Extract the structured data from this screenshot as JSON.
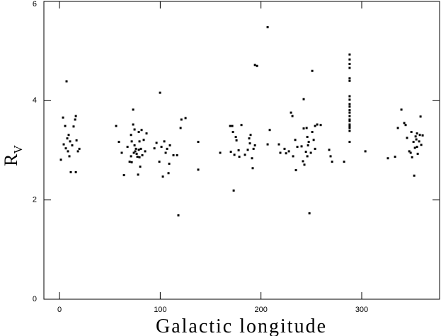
{
  "chart_data": {
    "type": "scatter",
    "x_label": "Galactic longitude",
    "y_label": "R",
    "y_label_subscript": "V",
    "xlim": [
      -15.5,
      377.3
    ],
    "ylim": [
      0,
      6
    ],
    "xticks": [
      0,
      100,
      200,
      300
    ],
    "yticks": [
      0,
      2,
      4,
      6
    ],
    "color": "#000000",
    "x": [
      1.4,
      3.5,
      4.2,
      5.6,
      7,
      6.3,
      7.7,
      9.1,
      10.5,
      11.2,
      8.4,
      12.6,
      14,
      15.5,
      16.2,
      16.9,
      18.3,
      19.7,
      9.8,
      16.2,
      56.2,
      59,
      61.8,
      64,
      67.5,
      69.6,
      71,
      71.7,
      73.1,
      73.1,
      73.8,
      74.5,
      74.5,
      75.2,
      75.9,
      76.6,
      77.3,
      78,
      78.7,
      78.7,
      79.4,
      79.4,
      80.1,
      80.8,
      81.5,
      82.2,
      71,
      71.7,
      83.6,
      86.4,
      85,
      94.2,
      96.3,
      99.8,
      99.1,
      101.2,
      102.6,
      104,
      105.4,
      106.8,
      108.2,
      109.6,
      108.9,
      113.1,
      116.7,
      118,
      120.2,
      121,
      125.1,
      137.7,
      137.7,
      159.5,
      169.4,
      170.1,
      171.5,
      172.2,
      172.9,
      173.6,
      175,
      175.7,
      177.8,
      178.5,
      180.6,
      184.1,
      186.9,
      188.3,
      189,
      189.7,
      191.1,
      191.8,
      192.6,
      194,
      196.1,
      194,
      206.6,
      206.6,
      208.7,
      217.8,
      219.2,
      223.4,
      224.9,
      227.7,
      229.8,
      231.2,
      231.9,
      234,
      234.7,
      236.1,
      240.3,
      242.4,
      241.7,
      242.4,
      243.1,
      244.6,
      245.3,
      246,
      246,
      246.7,
      247.4,
      248.1,
      249.5,
      250.9,
      250.9,
      252.3,
      253.7,
      253.7,
      255.8,
      259.3,
      267.7,
      269.1,
      270.6,
      282.5,
      288,
      288,
      288,
      288,
      288,
      288,
      288,
      288,
      288,
      288,
      288,
      288,
      288,
      288,
      288,
      288,
      288,
      288,
      288,
      288,
      303.6,
      326,
      333.1,
      335.9,
      339.4,
      342.2,
      343.6,
      345,
      347.2,
      348.6,
      349.3,
      350,
      351.4,
      352.1,
      352.8,
      353.5,
      354.2,
      354.9,
      355.6,
      357,
      357.7,
      358.4,
      359.1,
      360.5,
      354.9
    ],
    "values": [
      2.81,
      3.66,
      3.12,
      3.49,
      4.39,
      3.04,
      3.24,
      3.31,
      3.18,
      2.56,
      2.98,
      3.1,
      3.48,
      3.62,
      2.56,
      3.2,
      2.98,
      3.03,
      2.88,
      3.69,
      3.49,
      3.17,
      2.95,
      2.5,
      3.07,
      2.77,
      3.31,
      3.18,
      3.82,
      3.52,
      2.95,
      3.1,
      3.42,
      2.98,
      3.03,
      2.93,
      2.87,
      2.51,
      3.37,
      3.01,
      3.18,
      2.86,
      2.67,
      3.03,
      3.41,
      2.9,
      2.88,
      2.76,
      3.21,
      3.34,
      2.98,
      3.04,
      3.15,
      4.16,
      2.77,
      3.07,
      2.47,
      3.18,
      2.95,
      3.03,
      2.54,
      3.1,
      2.73,
      2.9,
      2.9,
      1.69,
      3.45,
      3.62,
      3.65,
      3.17,
      2.61,
      2.95,
      3.49,
      2.97,
      3.49,
      3.37,
      2.19,
      2.91,
      3.27,
      3.2,
      3,
      2.87,
      3.51,
      2.91,
      3.01,
      3.24,
      3.14,
      3.31,
      2.84,
      2.64,
      3.03,
      4.72,
      4.7,
      3.1,
      5.48,
      3.12,
      3.41,
      3.12,
      2.95,
      3.03,
      2.94,
      2.98,
      3.76,
      3.69,
      2.88,
      3.21,
      2.6,
      3.07,
      3.08,
      4.03,
      2.78,
      3.44,
      2.71,
      2.97,
      3.45,
      3.27,
      2.88,
      3.1,
      3.17,
      1.73,
      2.95,
      4.6,
      3.37,
      3.21,
      3.03,
      3.49,
      3.52,
      3.51,
      3.01,
      2.88,
      2.77,
      2.77,
      4.93,
      4.83,
      4.74,
      4.66,
      4.45,
      4.4,
      4.09,
      4.02,
      3.93,
      3.88,
      3.81,
      3.76,
      3.69,
      3.62,
      3.59,
      3.52,
      3.48,
      3.45,
      3.39,
      3.17,
      2.98,
      2.84,
      2.87,
      3.45,
      3.82,
      3.55,
      3.51,
      3.25,
      2.98,
      2.95,
      3.37,
      2.86,
      3.17,
      2.49,
      3.05,
      3.28,
      3.22,
      3.34,
      2.93,
      3.18,
      3.31,
      3.68,
      3.11,
      3.3,
      3.07
    ]
  }
}
